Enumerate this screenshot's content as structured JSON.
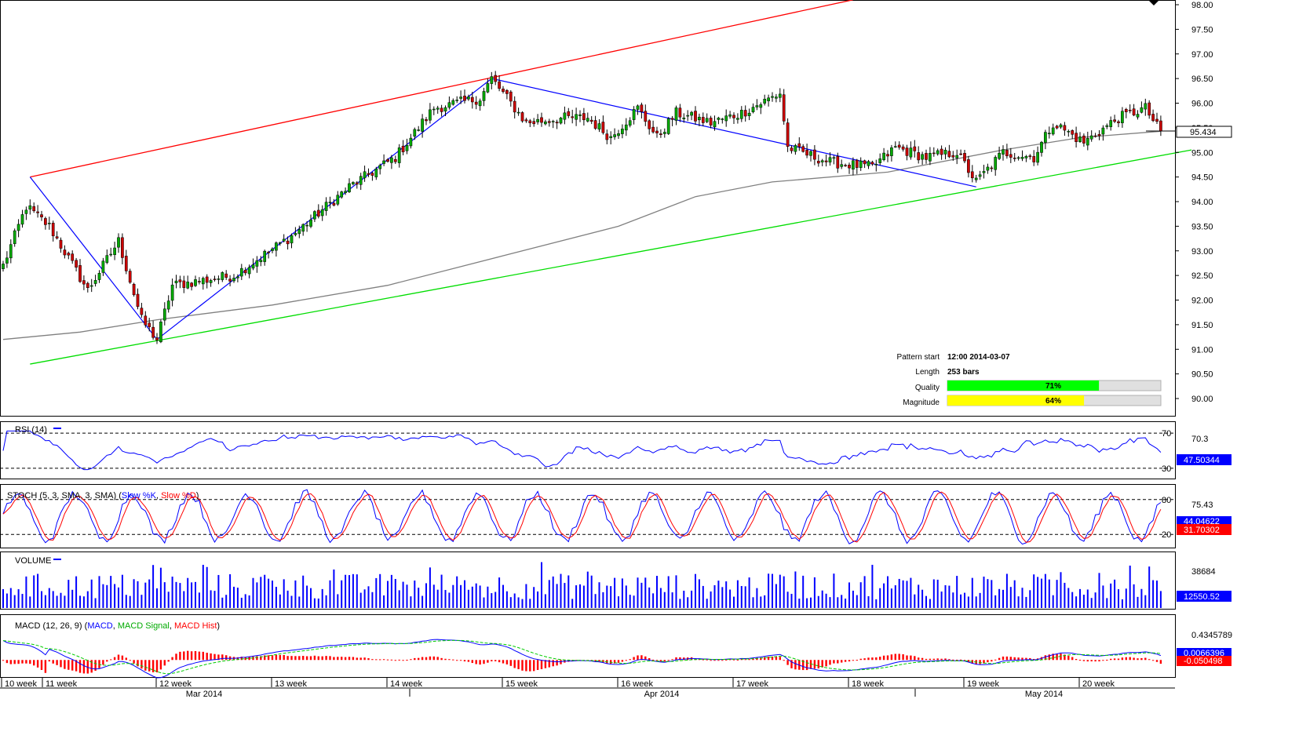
{
  "colors": {
    "up_candle": "#00aa00",
    "down_candle": "#cc0000",
    "channel_top": "#ff0000",
    "channel_bottom": "#00dd00",
    "zigzag": "#0000ff",
    "moving_average": "#808080",
    "rsi": "#0000ff",
    "stoch_k": "#0000ff",
    "stoch_d": "#ff0000",
    "volume": "#0000ff",
    "macd": "#0000ff",
    "macd_signal": "#00cc00",
    "macd_hist": "#ff0000",
    "quality_bar": "#00ff00",
    "magnitude_bar": "#ffff00"
  },
  "info_panel": {
    "pattern_start_label": "Pattern start",
    "pattern_start_value": "12:00 2014-03-07",
    "length_label": "Length",
    "length_value": "253 bars",
    "quality_label": "Quality",
    "quality_value": "71%",
    "quality_fraction": 0.71,
    "magnitude_label": "Magnitude",
    "magnitude_value": "64%",
    "magnitude_fraction": 0.64
  },
  "chart_data": [
    {
      "type": "candlestick",
      "panel": "price",
      "ylim": [
        89.6,
        98.1
      ],
      "y_ticks": [
        "98.00",
        "97.50",
        "97.00",
        "96.50",
        "96.00",
        "95.50",
        "95.00",
        "94.50",
        "94.00",
        "93.50",
        "93.00",
        "92.50",
        "92.00",
        "91.50",
        "91.00",
        "90.50",
        "90.00"
      ],
      "last_price_label": "95.434",
      "last_price": 95.434,
      "x_week_labels": [
        "10 week",
        "11 week",
        "12 week",
        "13 week",
        "14 week",
        "15 week",
        "16 week",
        "17 week",
        "18 week",
        "19 week",
        "20 week"
      ],
      "x_month_labels": [
        "Mar 2014",
        "Apr 2014",
        "May 2014"
      ],
      "anchors": [
        {
          "bar": 0,
          "price": 92.7
        },
        {
          "bar": 6,
          "price": 93.9
        },
        {
          "bar": 12,
          "price": 93.5
        },
        {
          "bar": 22,
          "price": 92.2
        },
        {
          "bar": 30,
          "price": 93.2
        },
        {
          "bar": 36,
          "price": 91.6
        },
        {
          "bar": 40,
          "price": 91.2
        },
        {
          "bar": 44,
          "price": 92.3
        },
        {
          "bar": 60,
          "price": 92.5
        },
        {
          "bar": 75,
          "price": 93.3
        },
        {
          "bar": 90,
          "price": 94.3
        },
        {
          "bar": 102,
          "price": 94.9
        },
        {
          "bar": 112,
          "price": 95.9
        },
        {
          "bar": 124,
          "price": 96.1
        },
        {
          "bar": 127,
          "price": 96.5
        },
        {
          "bar": 136,
          "price": 95.6
        },
        {
          "bar": 146,
          "price": 95.7
        },
        {
          "bar": 152,
          "price": 95.7
        },
        {
          "bar": 158,
          "price": 95.3
        },
        {
          "bar": 165,
          "price": 95.9
        },
        {
          "bar": 170,
          "price": 95.3
        },
        {
          "bar": 175,
          "price": 95.8
        },
        {
          "bar": 184,
          "price": 95.6
        },
        {
          "bar": 192,
          "price": 95.8
        },
        {
          "bar": 202,
          "price": 96.2
        },
        {
          "bar": 204,
          "price": 95.1
        },
        {
          "bar": 215,
          "price": 94.8
        },
        {
          "bar": 226,
          "price": 94.7
        },
        {
          "bar": 232,
          "price": 95.1
        },
        {
          "bar": 240,
          "price": 94.9
        },
        {
          "bar": 248,
          "price": 95.0
        },
        {
          "bar": 253,
          "price": 94.4
        },
        {
          "bar": 260,
          "price": 95.0
        },
        {
          "bar": 268,
          "price": 94.9
        },
        {
          "bar": 273,
          "price": 95.6
        },
        {
          "bar": 281,
          "price": 95.2
        },
        {
          "bar": 290,
          "price": 95.7
        },
        {
          "bar": 297,
          "price": 95.9
        },
        {
          "bar": 301,
          "price": 95.4
        }
      ],
      "channel_top": {
        "start": {
          "bar": 7,
          "price": 94.5
        },
        "end": {
          "bar": 221,
          "price": 98.1
        }
      },
      "channel_bottom": {
        "start": {
          "bar": 7,
          "price": 90.7
        },
        "end": {
          "bar": 309,
          "price": 95.05
        }
      },
      "zigzag": [
        {
          "bar": 7,
          "price": 94.5
        },
        {
          "bar": 40,
          "price": 91.2
        },
        {
          "bar": 127,
          "price": 96.5
        },
        {
          "bar": 253,
          "price": 94.3
        }
      ],
      "moving_average": [
        {
          "bar": 0,
          "price": 91.2
        },
        {
          "bar": 20,
          "price": 91.35
        },
        {
          "bar": 40,
          "price": 91.6
        },
        {
          "bar": 70,
          "price": 91.9
        },
        {
          "bar": 100,
          "price": 92.3
        },
        {
          "bar": 130,
          "price": 92.9
        },
        {
          "bar": 160,
          "price": 93.5
        },
        {
          "bar": 180,
          "price": 94.1
        },
        {
          "bar": 200,
          "price": 94.4
        },
        {
          "bar": 230,
          "price": 94.6
        },
        {
          "bar": 260,
          "price": 95.05
        },
        {
          "bar": 280,
          "price": 95.3
        },
        {
          "bar": 301,
          "price": 95.43
        }
      ]
    },
    {
      "type": "line",
      "panel": "rsi",
      "title": "RSI (14)",
      "ylim": [
        20,
        80
      ],
      "levels": [
        {
          "value": 70,
          "label": "70"
        },
        {
          "value": 30,
          "label": "30"
        }
      ],
      "top_label": "70.3",
      "current_label": "47.50344"
    },
    {
      "type": "line",
      "panel": "stoch",
      "title": "STOCH (5, 3, SMA, 3, SMA)",
      "series_names": [
        "Slow %K",
        "Slow %D"
      ],
      "ylim": [
        0,
        100
      ],
      "levels": [
        {
          "value": 80,
          "label": "80"
        },
        {
          "value": 20,
          "label": "20"
        }
      ],
      "top_label": "75.43",
      "k_label": "44.04622",
      "d_label": "31.70302"
    },
    {
      "type": "bar",
      "panel": "volume",
      "title": "VOLUME",
      "ylim": [
        0,
        50000
      ],
      "top_label": "38684",
      "current_label": "12550.52"
    },
    {
      "type": "line",
      "panel": "macd",
      "title": "MACD (12, 26, 9)",
      "series_names": [
        "MACD",
        "MACD Signal",
        "MACD Hist"
      ],
      "ylim": [
        -0.2,
        0.55
      ],
      "top_label": "0.4345789",
      "macd_label": "0.0066396",
      "signal_label": "-0.050498"
    }
  ]
}
